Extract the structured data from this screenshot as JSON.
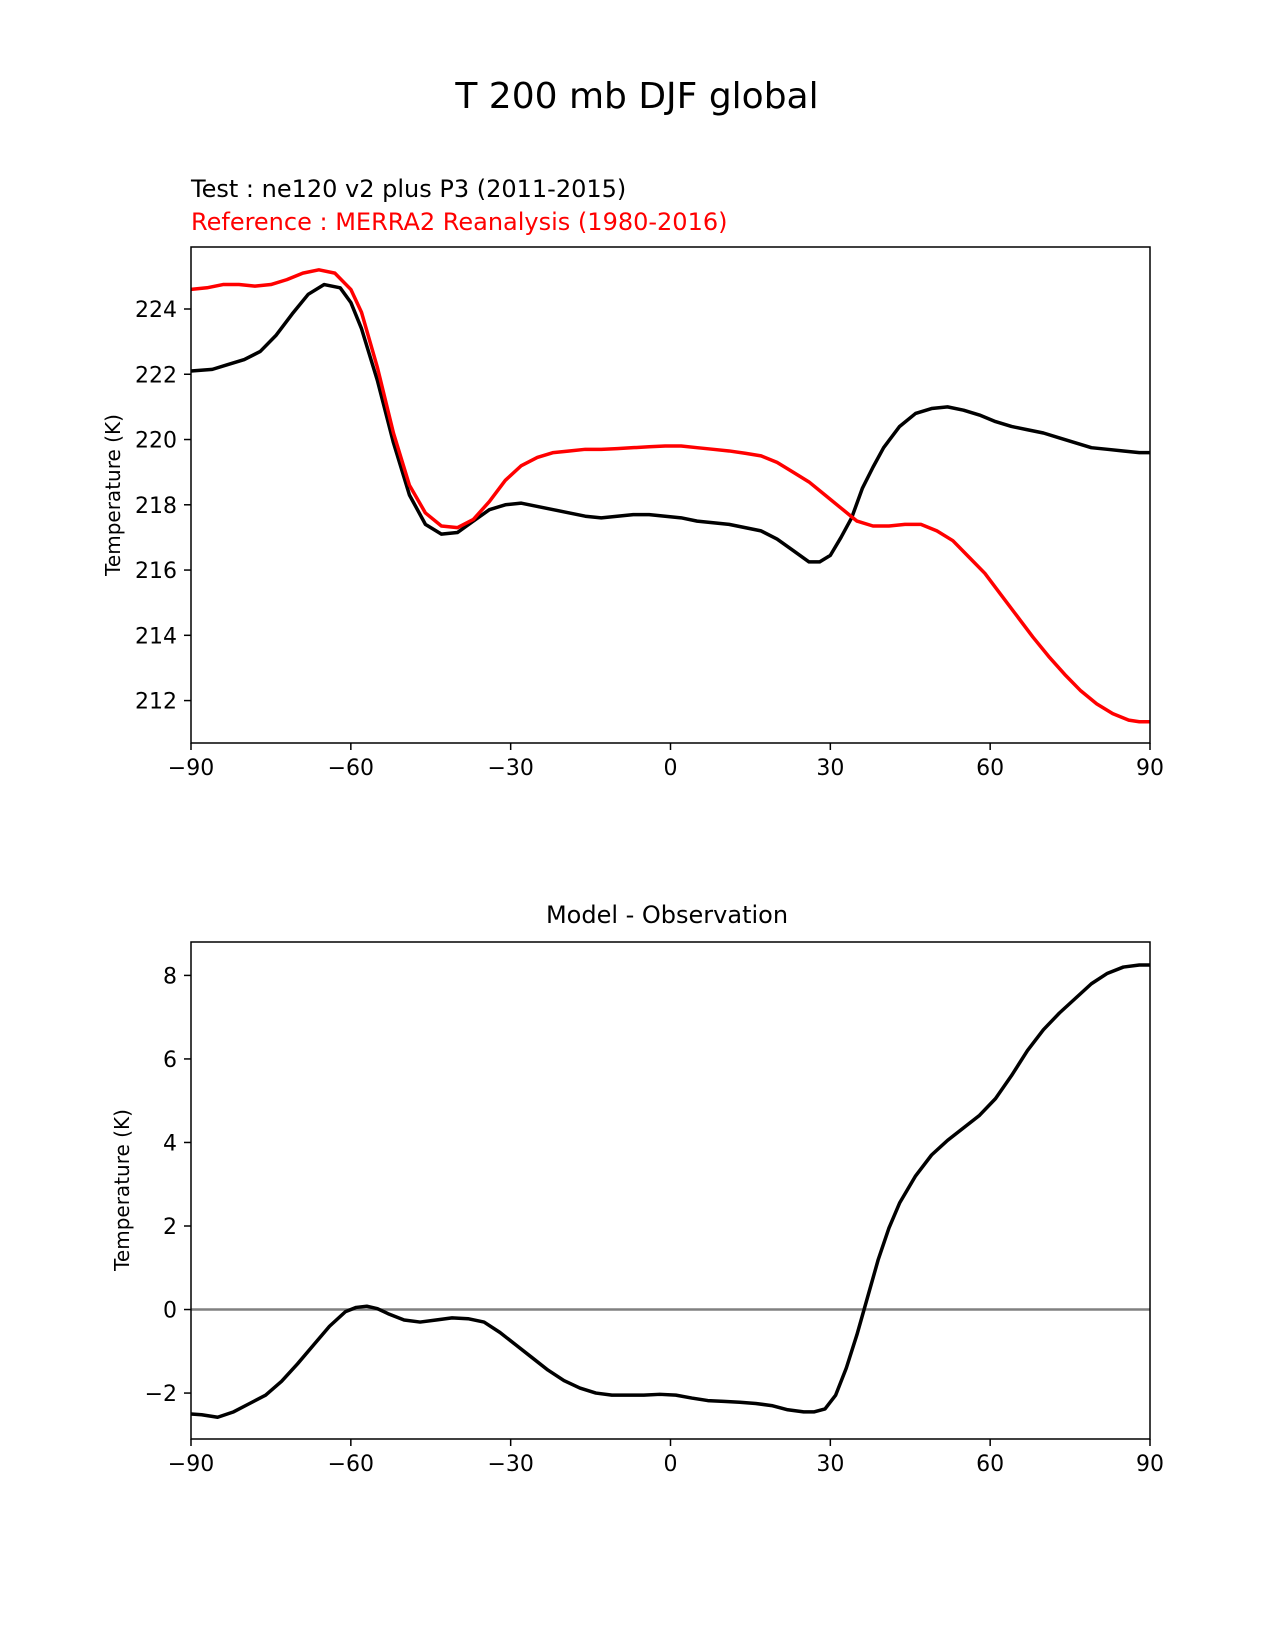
{
  "figure": {
    "title": "T 200 mb DJF global"
  },
  "colors": {
    "test": "#000000",
    "reference": "#ff0000",
    "zero_line": "#808080",
    "axes": "#000000"
  },
  "chart_data": [
    {
      "type": "line",
      "title": "",
      "test_label": "Test : ne120 v2 plus P3 (2011-2015)",
      "reference_label": "Reference : MERRA2 Reanalysis (1980-2016)",
      "xlabel": "",
      "ylabel": "Temperature (K)",
      "xlim": [
        -90,
        90
      ],
      "ylim": [
        210.7,
        225.9
      ],
      "xticks": [
        -90,
        -60,
        -30,
        0,
        30,
        60,
        90
      ],
      "xtick_labels": [
        "−90",
        "−60",
        "−30",
        "0",
        "30",
        "60",
        "90"
      ],
      "yticks": [
        212,
        214,
        216,
        218,
        220,
        222,
        224
      ],
      "ytick_labels": [
        "212",
        "214",
        "216",
        "218",
        "220",
        "222",
        "224"
      ],
      "series": [
        {
          "name": "Test : ne120 v2 plus P3 (2011-2015)",
          "role": "test",
          "x": [
            -90,
            -86,
            -83,
            -80,
            -77,
            -74,
            -71,
            -68,
            -65,
            -62,
            -60,
            -58,
            -55,
            -52,
            -49,
            -46,
            -43,
            -40,
            -37,
            -34,
            -31,
            -28,
            -25,
            -22,
            -19,
            -16,
            -13,
            -10,
            -7,
            -4,
            -1,
            2,
            5,
            8,
            11,
            14,
            17,
            20,
            23,
            26,
            28,
            30,
            32,
            34,
            36,
            38,
            40,
            43,
            46,
            49,
            52,
            55,
            58,
            61,
            64,
            67,
            70,
            73,
            76,
            79,
            82,
            85,
            88,
            90
          ],
          "y": [
            222.1,
            222.15,
            222.3,
            222.45,
            222.7,
            223.2,
            223.85,
            224.45,
            224.75,
            224.65,
            224.2,
            223.4,
            221.8,
            219.9,
            218.3,
            217.4,
            217.1,
            217.15,
            217.5,
            217.85,
            218.0,
            218.05,
            217.95,
            217.85,
            217.75,
            217.65,
            217.6,
            217.65,
            217.7,
            217.7,
            217.65,
            217.6,
            217.5,
            217.45,
            217.4,
            217.3,
            217.2,
            216.95,
            216.6,
            216.25,
            216.25,
            216.45,
            217.0,
            217.6,
            218.5,
            219.15,
            219.75,
            220.4,
            220.8,
            220.95,
            221.0,
            220.9,
            220.75,
            220.55,
            220.4,
            220.3,
            220.2,
            220.05,
            219.9,
            219.75,
            219.7,
            219.65,
            219.6,
            219.6
          ]
        },
        {
          "name": "Reference : MERRA2 Reanalysis (1980-2016)",
          "role": "reference",
          "x": [
            -90,
            -87,
            -84,
            -81,
            -78,
            -75,
            -72,
            -69,
            -66,
            -63,
            -60,
            -58,
            -55,
            -52,
            -49,
            -46,
            -43,
            -40,
            -37,
            -34,
            -31,
            -28,
            -25,
            -22,
            -19,
            -16,
            -13,
            -10,
            -7,
            -4,
            -1,
            2,
            5,
            8,
            11,
            14,
            17,
            20,
            23,
            26,
            29,
            32,
            35,
            38,
            41,
            44,
            47,
            50,
            53,
            56,
            59,
            62,
            65,
            68,
            71,
            74,
            77,
            80,
            83,
            86,
            88,
            90
          ],
          "y": [
            224.6,
            224.65,
            224.75,
            224.75,
            224.7,
            224.75,
            224.9,
            225.1,
            225.2,
            225.1,
            224.6,
            223.9,
            222.2,
            220.2,
            218.6,
            217.75,
            217.35,
            217.3,
            217.55,
            218.1,
            218.75,
            219.2,
            219.45,
            219.6,
            219.65,
            219.7,
            219.7,
            219.72,
            219.75,
            219.78,
            219.8,
            219.8,
            219.75,
            219.7,
            219.65,
            219.58,
            219.5,
            219.3,
            219.0,
            218.7,
            218.3,
            217.9,
            217.5,
            217.35,
            217.35,
            217.4,
            217.4,
            217.2,
            216.9,
            216.4,
            215.9,
            215.25,
            214.6,
            213.95,
            213.35,
            212.8,
            212.3,
            211.9,
            211.6,
            211.4,
            211.35,
            211.35
          ]
        }
      ]
    },
    {
      "type": "line",
      "title": "Model - Observation",
      "xlabel": "",
      "ylabel": "Temperature (K)",
      "xlim": [
        -90,
        90
      ],
      "ylim": [
        -3.1,
        8.8
      ],
      "xticks": [
        -90,
        -60,
        -30,
        0,
        30,
        60,
        90
      ],
      "xtick_labels": [
        "−90",
        "−60",
        "−30",
        "0",
        "30",
        "60",
        "90"
      ],
      "yticks": [
        -2,
        0,
        2,
        4,
        6,
        8
      ],
      "ytick_labels": [
        "−2",
        "0",
        "2",
        "4",
        "6",
        "8"
      ],
      "zero_line": 0,
      "series": [
        {
          "name": "Model - Observation",
          "x": [
            -90,
            -88,
            -85,
            -82,
            -79,
            -76,
            -73,
            -70,
            -67,
            -64,
            -61,
            -59,
            -57,
            -55,
            -53,
            -50,
            -47,
            -44,
            -41,
            -38,
            -35,
            -32,
            -29,
            -26,
            -23,
            -20,
            -17,
            -14,
            -11,
            -8,
            -5,
            -2,
            1,
            4,
            7,
            10,
            13,
            16,
            19,
            22,
            25,
            27,
            29,
            31,
            33,
            35,
            37,
            39,
            41,
            43,
            46,
            49,
            52,
            55,
            58,
            61,
            64,
            67,
            70,
            73,
            76,
            79,
            82,
            85,
            88,
            90
          ],
          "y": [
            -2.5,
            -2.52,
            -2.58,
            -2.45,
            -2.25,
            -2.05,
            -1.72,
            -1.3,
            -0.85,
            -0.4,
            -0.05,
            0.05,
            0.08,
            0.02,
            -0.1,
            -0.25,
            -0.3,
            -0.25,
            -0.2,
            -0.22,
            -0.3,
            -0.55,
            -0.85,
            -1.15,
            -1.45,
            -1.7,
            -1.88,
            -2.0,
            -2.05,
            -2.05,
            -2.05,
            -2.03,
            -2.05,
            -2.12,
            -2.18,
            -2.2,
            -2.22,
            -2.25,
            -2.3,
            -2.4,
            -2.45,
            -2.45,
            -2.38,
            -2.05,
            -1.4,
            -0.6,
            0.3,
            1.2,
            1.95,
            2.55,
            3.2,
            3.7,
            4.05,
            4.35,
            4.65,
            5.05,
            5.6,
            6.2,
            6.7,
            7.1,
            7.45,
            7.8,
            8.05,
            8.2,
            8.25,
            8.25
          ]
        }
      ]
    }
  ]
}
